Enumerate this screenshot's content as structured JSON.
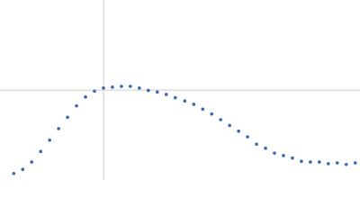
{
  "chart_data": {
    "type": "scatter",
    "x": [
      0.23,
      0.38,
      0.53,
      0.68,
      0.83,
      0.98,
      1.13,
      1.28,
      1.43,
      1.58,
      1.73,
      1.88,
      2.03,
      2.18,
      2.33,
      2.48,
      2.63,
      2.78,
      2.93,
      3.09,
      3.24,
      3.39,
      3.54,
      3.69,
      3.84,
      3.99,
      4.14,
      4.29,
      4.44,
      4.59,
      4.74,
      4.89,
      5.04,
      5.19,
      5.34,
      5.49,
      5.64,
      5.79,
      5.94
    ],
    "values": [
      0.08,
      0.13,
      0.22,
      0.35,
      0.49,
      0.63,
      0.77,
      0.91,
      1.02,
      1.09,
      1.13,
      1.14,
      1.15,
      1.15,
      1.13,
      1.1,
      1.08,
      1.05,
      1.01,
      0.97,
      0.93,
      0.87,
      0.81,
      0.74,
      0.67,
      0.6,
      0.53,
      0.44,
      0.39,
      0.33,
      0.3,
      0.27,
      0.23,
      0.22,
      0.22,
      0.2,
      0.21,
      0.19,
      0.21
    ],
    "color": "#3b66b5",
    "xlim": [
      0,
      6.02
    ],
    "ylim": [
      0,
      2.21
    ],
    "vline": 1.732,
    "hline": 1.104,
    "line_color": "#cccccc"
  }
}
